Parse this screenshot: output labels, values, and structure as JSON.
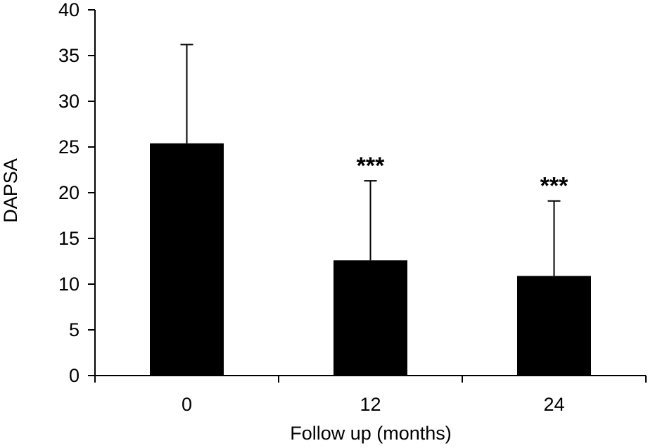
{
  "chart_data": {
    "type": "bar",
    "title": "",
    "xlabel": "Follow up (months)",
    "ylabel": "DAPSA",
    "categories": [
      "0",
      "12",
      "24"
    ],
    "values": [
      25.4,
      12.6,
      10.9
    ],
    "error_upper": [
      36.2,
      21.3,
      19.1
    ],
    "annotations": [
      "",
      "***",
      "***"
    ],
    "ylim": [
      0,
      40
    ],
    "yticks": [
      "0",
      "5",
      "10",
      "15",
      "20",
      "25",
      "30",
      "35",
      "40"
    ],
    "grid": false,
    "bar_color": "#000000"
  }
}
